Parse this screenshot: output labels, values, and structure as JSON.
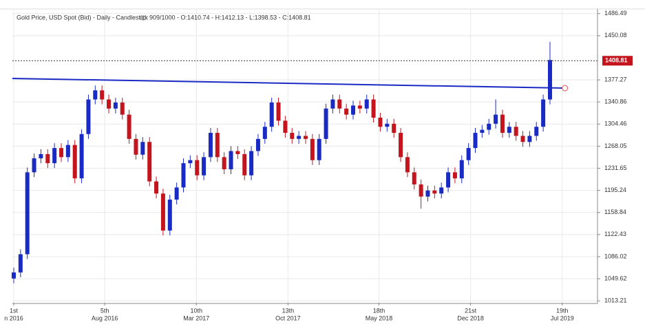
{
  "chart_data": {
    "type": "candlestick",
    "title": "Gold Price, USD Spot (Bid) - Daily - Candlestick",
    "info": "909/1000 - O:1410.74 - H:1412.13 - L:1398.53 - C:1408.81",
    "up_color": "#1a2bc4",
    "down_color": "#c4141e",
    "grid": true,
    "ylim": [
      1010,
      1493
    ],
    "yticks": [
      1486.49,
      1450.08,
      1377.27,
      1340.86,
      1304.46,
      1268.05,
      1231.65,
      1195.24,
      1158.84,
      1122.43,
      1086.02,
      1049.62,
      1013.21
    ],
    "xlim": [
      -0.2,
      86
    ],
    "xticks": [
      {
        "value": 0,
        "label": [
          "1st",
          "n 2016"
        ]
      },
      {
        "value": 13.4,
        "label": [
          "5th",
          "Aug 2016"
        ]
      },
      {
        "value": 26.9,
        "label": [
          "10th",
          "Mar 2017"
        ]
      },
      {
        "value": 40.4,
        "label": [
          "13th",
          "Oct 2017"
        ]
      },
      {
        "value": 53.8,
        "label": [
          "18th",
          "May 2018"
        ]
      },
      {
        "value": 67.3,
        "label": [
          "21st",
          "Dec 2018"
        ]
      },
      {
        "value": 80.8,
        "label": [
          "19th",
          "Jul 2019"
        ]
      }
    ],
    "last_price": 1408.81,
    "trendline": {
      "x": [
        -0.2,
        81.2
      ],
      "y": [
        1379.6,
        1363.7
      ],
      "color": "#1a2bc4"
    },
    "candles": [
      [
        1050,
        1068,
        1042,
        1060
      ],
      [
        1060,
        1098,
        1052,
        1090
      ],
      [
        1090,
        1233,
        1082,
        1225
      ],
      [
        1225,
        1256,
        1217,
        1248
      ],
      [
        1248,
        1263,
        1240,
        1255
      ],
      [
        1255,
        1263,
        1232,
        1240
      ],
      [
        1240,
        1273,
        1232,
        1265
      ],
      [
        1265,
        1273,
        1242,
        1250
      ],
      [
        1250,
        1278,
        1242,
        1270
      ],
      [
        1270,
        1278,
        1207,
        1215
      ],
      [
        1215,
        1296,
        1207,
        1288
      ],
      [
        1288,
        1353,
        1280,
        1345
      ],
      [
        1345,
        1368,
        1337,
        1360
      ],
      [
        1360,
        1368,
        1337,
        1345
      ],
      [
        1345,
        1353,
        1322,
        1330
      ],
      [
        1330,
        1348,
        1322,
        1340
      ],
      [
        1340,
        1348,
        1312,
        1320
      ],
      [
        1320,
        1328,
        1272,
        1280
      ],
      [
        1280,
        1288,
        1246,
        1254
      ],
      [
        1254,
        1283,
        1246,
        1275
      ],
      [
        1275,
        1283,
        1202,
        1210
      ],
      [
        1210,
        1218,
        1182,
        1190
      ],
      [
        1190,
        1198,
        1121,
        1129
      ],
      [
        1129,
        1188,
        1121,
        1180
      ],
      [
        1180,
        1208,
        1172,
        1200
      ],
      [
        1200,
        1248,
        1192,
        1240
      ],
      [
        1240,
        1253,
        1232,
        1245
      ],
      [
        1245,
        1253,
        1212,
        1220
      ],
      [
        1220,
        1258,
        1212,
        1250
      ],
      [
        1250,
        1298,
        1242,
        1290
      ],
      [
        1290,
        1298,
        1242,
        1250
      ],
      [
        1250,
        1258,
        1222,
        1230
      ],
      [
        1230,
        1268,
        1222,
        1260
      ],
      [
        1260,
        1268,
        1247,
        1255
      ],
      [
        1255,
        1263,
        1212,
        1220
      ],
      [
        1220,
        1268,
        1212,
        1260
      ],
      [
        1260,
        1288,
        1252,
        1280
      ],
      [
        1280,
        1308,
        1272,
        1300
      ],
      [
        1300,
        1348,
        1292,
        1340
      ],
      [
        1340,
        1348,
        1302,
        1310
      ],
      [
        1310,
        1318,
        1282,
        1290
      ],
      [
        1290,
        1298,
        1272,
        1280
      ],
      [
        1280,
        1293,
        1272,
        1285
      ],
      [
        1285,
        1293,
        1272,
        1280
      ],
      [
        1280,
        1288,
        1237,
        1245
      ],
      [
        1245,
        1288,
        1237,
        1280
      ],
      [
        1280,
        1338,
        1272,
        1330
      ],
      [
        1330,
        1353,
        1322,
        1345
      ],
      [
        1345,
        1353,
        1322,
        1330
      ],
      [
        1330,
        1338,
        1312,
        1320
      ],
      [
        1320,
        1343,
        1312,
        1335
      ],
      [
        1335,
        1343,
        1322,
        1330
      ],
      [
        1330,
        1353,
        1322,
        1345
      ],
      [
        1345,
        1353,
        1307,
        1315
      ],
      [
        1315,
        1323,
        1292,
        1300
      ],
      [
        1300,
        1313,
        1292,
        1305
      ],
      [
        1305,
        1313,
        1282,
        1290
      ],
      [
        1290,
        1298,
        1242,
        1250
      ],
      [
        1250,
        1258,
        1217,
        1225
      ],
      [
        1225,
        1233,
        1197,
        1205
      ],
      [
        1205,
        1213,
        1165,
        1185
      ],
      [
        1185,
        1203,
        1177,
        1195
      ],
      [
        1195,
        1203,
        1182,
        1190
      ],
      [
        1190,
        1208,
        1182,
        1200
      ],
      [
        1200,
        1233,
        1192,
        1225
      ],
      [
        1225,
        1233,
        1207,
        1215
      ],
      [
        1215,
        1253,
        1207,
        1245
      ],
      [
        1245,
        1273,
        1237,
        1265
      ],
      [
        1265,
        1298,
        1257,
        1290
      ],
      [
        1290,
        1303,
        1282,
        1295
      ],
      [
        1295,
        1313,
        1287,
        1305
      ],
      [
        1305,
        1345,
        1297,
        1320
      ],
      [
        1320,
        1328,
        1282,
        1290
      ],
      [
        1290,
        1308,
        1282,
        1300
      ],
      [
        1300,
        1308,
        1277,
        1285
      ],
      [
        1285,
        1293,
        1267,
        1275
      ],
      [
        1275,
        1293,
        1267,
        1285
      ],
      [
        1285,
        1308,
        1277,
        1300
      ],
      [
        1300,
        1353,
        1292,
        1345
      ],
      [
        1345,
        1440,
        1337,
        1410
      ]
    ]
  }
}
